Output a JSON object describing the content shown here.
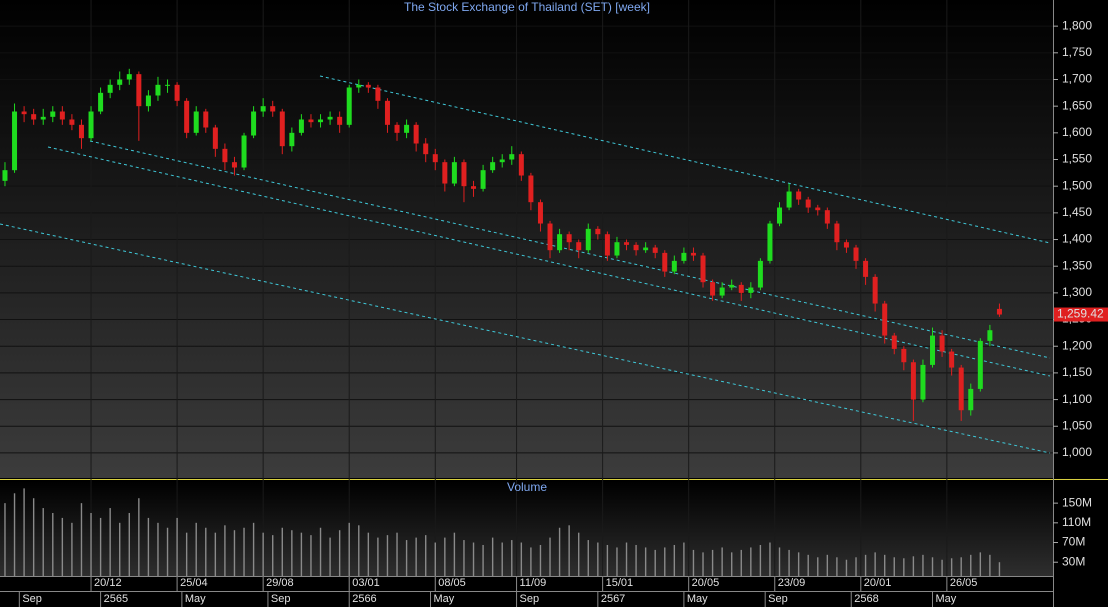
{
  "chart_data": [
    {
      "type": "candlestick",
      "title": "The Stock Exchange of Thailand (SET) [week]",
      "xlim": [
        -0.52,
        109.6
      ],
      "ylim": [
        953,
        1849
      ],
      "yticks": [
        {
          "value": 1000,
          "label": "1,000"
        },
        {
          "value": 1050,
          "label": "1,050"
        },
        {
          "value": 1100,
          "label": "1,100"
        },
        {
          "value": 1150,
          "label": "1,150"
        },
        {
          "value": 1200,
          "label": "1,200"
        },
        {
          "value": 1250,
          "label": "1,250"
        },
        {
          "value": 1300,
          "label": "1,300"
        },
        {
          "value": 1350,
          "label": "1,350"
        },
        {
          "value": 1400,
          "label": "1,400"
        },
        {
          "value": 1450,
          "label": "1,450"
        },
        {
          "value": 1500,
          "label": "1,500"
        },
        {
          "value": 1550,
          "label": "1,550"
        },
        {
          "value": 1600,
          "label": "1,600"
        },
        {
          "value": 1650,
          "label": "1,650"
        },
        {
          "value": 1700,
          "label": "1,700"
        },
        {
          "value": 1750,
          "label": "1,750"
        },
        {
          "value": 1800,
          "label": "1,800"
        }
      ],
      "xticks": [
        {
          "value": 9,
          "label": "20/12"
        },
        {
          "value": 18,
          "label": "25/04"
        },
        {
          "value": 27,
          "label": "29/08"
        },
        {
          "value": 36,
          "label": "03/01"
        },
        {
          "value": 45,
          "label": "08/05"
        },
        {
          "value": 53.5,
          "label": "11/09"
        },
        {
          "value": 62.5,
          "label": "15/01"
        },
        {
          "value": 71.5,
          "label": "20/05"
        },
        {
          "value": 80.5,
          "label": "23/09"
        },
        {
          "value": 89.5,
          "label": "20/01"
        },
        {
          "value": 98.5,
          "label": "26/05"
        }
      ],
      "xticks2": [
        {
          "value": 1.5,
          "label": "Sep"
        },
        {
          "value": 10,
          "label": "2565"
        },
        {
          "value": 18.5,
          "label": "May"
        },
        {
          "value": 27.5,
          "label": "Sep"
        },
        {
          "value": 36,
          "label": "2566"
        },
        {
          "value": 44.5,
          "label": "May"
        },
        {
          "value": 53.5,
          "label": "Sep"
        },
        {
          "value": 62,
          "label": "2567"
        },
        {
          "value": 71,
          "label": "May"
        },
        {
          "value": 79.5,
          "label": "Sep"
        },
        {
          "value": 88.5,
          "label": "2568"
        },
        {
          "value": 97,
          "label": "May"
        }
      ],
      "up_color": "#1fdc1f",
      "down_color": "#e02020",
      "last_value": {
        "value": 1259.42,
        "label": "1,259.42"
      },
      "open": [
        1510,
        1530,
        1640,
        1635,
        1625,
        1630,
        1640,
        1625,
        1615,
        1590,
        1640,
        1675,
        1690,
        1700,
        1710,
        1650,
        1670,
        1690,
        1690,
        1660,
        1600,
        1640,
        1610,
        1570,
        1545,
        1535,
        1595,
        1640,
        1650,
        1640,
        1575,
        1600,
        1625,
        1620,
        1625,
        1630,
        1615,
        1685,
        1690,
        1685,
        1660,
        1615,
        1600,
        1615,
        1580,
        1560,
        1545,
        1505,
        1545,
        1500,
        1495,
        1530,
        1545,
        1550,
        1560,
        1520,
        1470,
        1430,
        1380,
        1410,
        1395,
        1380,
        1420,
        1410,
        1370,
        1395,
        1390,
        1380,
        1385,
        1375,
        1340,
        1360,
        1375,
        1370,
        1320,
        1295,
        1310,
        1315,
        1300,
        1310,
        1360,
        1430,
        1460,
        1490,
        1475,
        1460,
        1455,
        1430,
        1395,
        1385,
        1360,
        1330,
        1280,
        1220,
        1195,
        1170,
        1100,
        1165,
        1220,
        1190,
        1160,
        1080,
        1120,
        1210,
        1270
      ],
      "high": [
        1545,
        1655,
        1650,
        1645,
        1645,
        1650,
        1650,
        1635,
        1625,
        1650,
        1685,
        1700,
        1715,
        1720,
        1715,
        1680,
        1705,
        1700,
        1695,
        1665,
        1650,
        1645,
        1615,
        1580,
        1555,
        1600,
        1650,
        1665,
        1660,
        1645,
        1610,
        1635,
        1635,
        1635,
        1640,
        1640,
        1690,
        1700,
        1695,
        1690,
        1665,
        1620,
        1625,
        1620,
        1590,
        1570,
        1550,
        1555,
        1550,
        1510,
        1540,
        1555,
        1560,
        1575,
        1565,
        1525,
        1475,
        1435,
        1420,
        1415,
        1400,
        1430,
        1425,
        1415,
        1405,
        1400,
        1395,
        1395,
        1390,
        1380,
        1370,
        1385,
        1385,
        1375,
        1325,
        1320,
        1325,
        1320,
        1320,
        1365,
        1435,
        1470,
        1505,
        1495,
        1480,
        1465,
        1460,
        1435,
        1400,
        1390,
        1365,
        1335,
        1285,
        1225,
        1200,
        1175,
        1175,
        1235,
        1230,
        1195,
        1165,
        1130,
        1215,
        1240,
        1280
      ],
      "low": [
        1500,
        1525,
        1620,
        1615,
        1615,
        1620,
        1615,
        1605,
        1570,
        1585,
        1635,
        1665,
        1680,
        1690,
        1585,
        1640,
        1660,
        1675,
        1650,
        1590,
        1595,
        1600,
        1555,
        1530,
        1520,
        1530,
        1590,
        1630,
        1630,
        1560,
        1565,
        1595,
        1610,
        1610,
        1615,
        1600,
        1610,
        1675,
        1675,
        1645,
        1600,
        1585,
        1590,
        1565,
        1545,
        1530,
        1490,
        1500,
        1470,
        1480,
        1490,
        1525,
        1535,
        1540,
        1510,
        1455,
        1415,
        1365,
        1375,
        1380,
        1365,
        1375,
        1400,
        1360,
        1365,
        1380,
        1370,
        1375,
        1365,
        1330,
        1335,
        1355,
        1360,
        1310,
        1285,
        1290,
        1305,
        1285,
        1290,
        1305,
        1355,
        1425,
        1455,
        1465,
        1450,
        1445,
        1420,
        1380,
        1375,
        1345,
        1315,
        1265,
        1205,
        1185,
        1155,
        1060,
        1095,
        1160,
        1180,
        1145,
        1060,
        1070,
        1115,
        1200,
        1255
      ],
      "close": [
        1530,
        1640,
        1635,
        1625,
        1630,
        1640,
        1625,
        1615,
        1590,
        1640,
        1675,
        1690,
        1700,
        1710,
        1650,
        1670,
        1690,
        1690,
        1660,
        1600,
        1640,
        1610,
        1570,
        1545,
        1535,
        1595,
        1640,
        1650,
        1640,
        1575,
        1600,
        1625,
        1620,
        1625,
        1630,
        1615,
        1685,
        1690,
        1685,
        1660,
        1615,
        1600,
        1615,
        1580,
        1560,
        1545,
        1505,
        1545,
        1500,
        1495,
        1530,
        1545,
        1550,
        1560,
        1520,
        1470,
        1430,
        1380,
        1410,
        1395,
        1380,
        1420,
        1410,
        1370,
        1395,
        1390,
        1380,
        1385,
        1375,
        1340,
        1360,
        1375,
        1370,
        1320,
        1295,
        1310,
        1315,
        1300,
        1310,
        1360,
        1430,
        1460,
        1490,
        1475,
        1460,
        1455,
        1430,
        1395,
        1385,
        1360,
        1330,
        1280,
        1220,
        1195,
        1170,
        1100,
        1165,
        1220,
        1190,
        1160,
        1080,
        1120,
        1210,
        1230,
        1259.42
      ]
    },
    {
      "type": "bar",
      "title": "Volume",
      "color": "#8a8a8a",
      "xlim": [
        -0.52,
        109.6
      ],
      "ylim": [
        2,
        197
      ],
      "yticks": [
        {
          "value": 30,
          "label": "30M"
        },
        {
          "value": 70,
          "label": "70M"
        },
        {
          "value": 110,
          "label": "110M"
        },
        {
          "value": 150,
          "label": "150M"
        }
      ],
      "values": [
        150,
        170,
        180,
        160,
        140,
        130,
        120,
        110,
        150,
        130,
        120,
        140,
        110,
        130,
        160,
        120,
        110,
        100,
        120,
        90,
        110,
        100,
        90,
        105,
        95,
        100,
        110,
        90,
        85,
        100,
        95,
        90,
        85,
        100,
        80,
        95,
        110,
        105,
        90,
        80,
        85,
        90,
        75,
        80,
        85,
        70,
        80,
        90,
        75,
        70,
        65,
        80,
        70,
        75,
        70,
        60,
        65,
        80,
        100,
        105,
        90,
        75,
        70,
        65,
        60,
        70,
        65,
        60,
        55,
        60,
        65,
        70,
        55,
        50,
        55,
        60,
        50,
        55,
        60,
        65,
        70,
        60,
        55,
        50,
        45,
        40,
        45,
        40,
        35,
        40,
        45,
        50,
        45,
        40,
        38,
        42,
        45,
        40,
        35,
        38,
        40,
        45,
        50,
        45,
        30
      ]
    }
  ]
}
